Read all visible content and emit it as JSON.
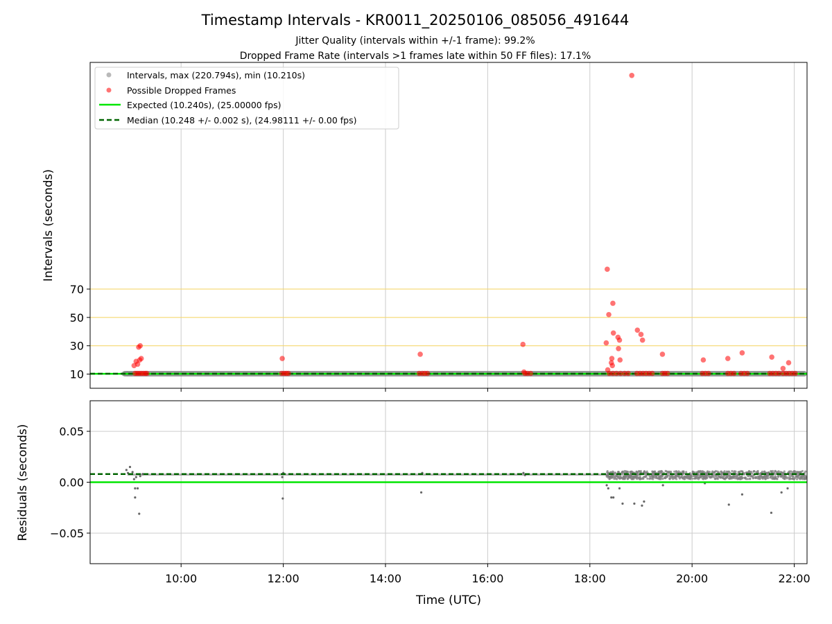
{
  "figure": {
    "title": "Timestamp Intervals - KR0011_20250106_085056_491644",
    "subtitle_1": "Jitter Quality (intervals within +/-1 frame): 99.2%",
    "subtitle_2": "Dropped Frame Rate (intervals >1 frames late within 50 FF files): 17.1%"
  },
  "colors": {
    "intervals": "#808080",
    "dropped": "#ff0000",
    "expected": "#00e600",
    "median": "#006400",
    "hlines": "#f5d76e",
    "grid": "#cccccc"
  },
  "chart_data": [
    {
      "type": "scatter",
      "xlabel": "",
      "ylabel": "Intervals (seconds)",
      "xlim": [
        8.22,
        22.25
      ],
      "ylim": [
        0,
        230
      ],
      "y_ticks": [
        10,
        30,
        50,
        70
      ],
      "y_tick_labels": [
        "10",
        "30",
        "50",
        "70"
      ],
      "x_ticks": [
        10,
        12,
        14,
        16,
        18,
        20,
        22
      ],
      "x_tick_labels": [
        "",
        "",
        "",
        "",
        "",
        "",
        ""
      ],
      "grid": true,
      "legend_position": "top-left",
      "legend": [
        "Intervals, max (220.794s), min (10.210s)",
        "Possible Dropped Frames",
        "Expected (10.240s), (25.00000 fps)",
        "Median (10.248 +/- 0.002 s), (24.98111 +/- 0.00 fps)"
      ],
      "hlines": [
        {
          "y": 30,
          "style": "threshold"
        },
        {
          "y": 50,
          "style": "threshold"
        },
        {
          "y": 70,
          "style": "threshold"
        },
        {
          "y": 10.24,
          "series": "Expected"
        },
        {
          "y": 10.248,
          "series": "Median"
        }
      ],
      "series": [
        {
          "name": "Intervals, max (220.794s), min (10.210s)",
          "kind": "band",
          "x_range": [
            8.85,
            22.25
          ],
          "y": 10.25
        },
        {
          "name": "Possible Dropped Frames",
          "kind": "points",
          "points": [
            [
              9.08,
              16
            ],
            [
              9.12,
              19
            ],
            [
              9.15,
              17
            ],
            [
              9.17,
              29
            ],
            [
              9.2,
              30
            ],
            [
              9.22,
              21
            ],
            [
              9.19,
              20
            ],
            [
              9.1,
              10.5
            ],
            [
              9.14,
              10.5
            ],
            [
              9.18,
              10.5
            ],
            [
              9.22,
              10.5
            ],
            [
              9.26,
              10.5
            ],
            [
              9.3,
              10.5
            ],
            [
              9.33,
              10.5
            ],
            [
              11.98,
              21
            ],
            [
              11.97,
              10.5
            ],
            [
              12.02,
              10.5
            ],
            [
              12.06,
              10.5
            ],
            [
              12.1,
              10.5
            ],
            [
              14.68,
              24
            ],
            [
              14.66,
              10.5
            ],
            [
              14.72,
              10.5
            ],
            [
              14.77,
              10.5
            ],
            [
              14.82,
              10.5
            ],
            [
              16.69,
              31
            ],
            [
              16.71,
              11.5
            ],
            [
              16.73,
              10.5
            ],
            [
              16.78,
              10.5
            ],
            [
              16.84,
              10.5
            ],
            [
              18.34,
              84
            ],
            [
              18.32,
              32
            ],
            [
              18.37,
              52
            ],
            [
              18.45,
              60
            ],
            [
              18.46,
              39
            ],
            [
              18.55,
              36
            ],
            [
              18.58,
              34
            ],
            [
              18.56,
              28
            ],
            [
              18.59,
              20
            ],
            [
              18.43,
              21
            ],
            [
              18.42,
              18
            ],
            [
              18.44,
              16
            ],
            [
              18.35,
              13
            ],
            [
              18.82,
              220.8
            ],
            [
              18.93,
              41
            ],
            [
              19.0,
              38
            ],
            [
              19.03,
              34
            ],
            [
              19.42,
              24
            ],
            [
              20.22,
              20
            ],
            [
              20.7,
              21
            ],
            [
              20.98,
              25
            ],
            [
              21.56,
              22
            ],
            [
              21.78,
              14
            ],
            [
              21.89,
              18
            ],
            [
              18.38,
              10.5
            ],
            [
              18.45,
              10.5
            ],
            [
              18.52,
              10.5
            ],
            [
              18.6,
              10.5
            ],
            [
              18.68,
              10.5
            ],
            [
              18.75,
              10.5
            ],
            [
              18.92,
              10.5
            ],
            [
              18.98,
              10.5
            ],
            [
              19.04,
              10.5
            ],
            [
              19.1,
              10.5
            ],
            [
              19.16,
              10.5
            ],
            [
              19.22,
              10.5
            ],
            [
              19.42,
              10.5
            ],
            [
              19.47,
              10.5
            ],
            [
              19.52,
              10.5
            ],
            [
              20.2,
              10.5
            ],
            [
              20.26,
              10.5
            ],
            [
              20.32,
              10.5
            ],
            [
              20.7,
              10.5
            ],
            [
              20.76,
              10.5
            ],
            [
              20.82,
              10.5
            ],
            [
              20.96,
              10.5
            ],
            [
              21.02,
              10.5
            ],
            [
              21.08,
              10.5
            ],
            [
              21.52,
              10.5
            ],
            [
              21.58,
              10.5
            ],
            [
              21.64,
              10.5
            ],
            [
              21.7,
              10.5
            ],
            [
              21.78,
              10.5
            ],
            [
              21.84,
              10.5
            ],
            [
              21.9,
              10.5
            ],
            [
              21.96,
              10.5
            ],
            [
              22.02,
              10.5
            ]
          ]
        }
      ]
    },
    {
      "type": "scatter",
      "xlabel": "Time (UTC)",
      "ylabel": "Residuals (seconds)",
      "xlim": [
        8.22,
        22.25
      ],
      "ylim": [
        -0.08,
        0.08
      ],
      "y_ticks": [
        -0.05,
        0.0,
        0.05
      ],
      "y_tick_labels": [
        "−0.05",
        "0.00",
        "0.05"
      ],
      "x_ticks": [
        10,
        12,
        14,
        16,
        18,
        20,
        22
      ],
      "x_tick_labels": [
        "10:00",
        "12:00",
        "14:00",
        "16:00",
        "18:00",
        "20:00",
        "22:00"
      ],
      "grid": true,
      "hlines": [
        {
          "y": 0.0,
          "series": "Expected"
        },
        {
          "y": 0.008,
          "series": "Median"
        }
      ],
      "series": [
        {
          "name": "Residuals",
          "points": [
            [
              8.93,
              0.012
            ],
            [
              8.96,
              0.009
            ],
            [
              9.0,
              0.015
            ],
            [
              9.05,
              0.01
            ],
            [
              9.08,
              0.003
            ],
            [
              9.1,
              -0.006
            ],
            [
              9.12,
              0.005
            ],
            [
              9.15,
              -0.006
            ],
            [
              9.1,
              -0.015
            ],
            [
              9.18,
              -0.031
            ],
            [
              9.2,
              0.006
            ],
            [
              9.25,
              0.008
            ],
            [
              11.98,
              0.005
            ],
            [
              11.99,
              -0.016
            ],
            [
              12.0,
              0.009
            ],
            [
              14.7,
              -0.01
            ],
            [
              14.72,
              0.009
            ],
            [
              16.7,
              0.009
            ],
            [
              16.73,
              0.007
            ],
            [
              18.33,
              -0.003
            ],
            [
              18.36,
              -0.006
            ],
            [
              18.42,
              -0.015
            ],
            [
              18.46,
              -0.015
            ],
            [
              18.58,
              -0.006
            ],
            [
              18.64,
              -0.021
            ],
            [
              18.87,
              -0.021
            ],
            [
              19.02,
              -0.023
            ],
            [
              19.06,
              -0.019
            ],
            [
              19.43,
              -0.003
            ],
            [
              20.25,
              -0.001
            ],
            [
              20.72,
              -0.022
            ],
            [
              20.98,
              -0.012
            ],
            [
              21.55,
              -0.03
            ],
            [
              21.75,
              -0.01
            ],
            [
              21.87,
              -0.006
            ]
          ],
          "dense_band": {
            "x_range": [
              18.33,
              22.25
            ],
            "y_range": [
              0.003,
              0.011
            ]
          }
        }
      ]
    }
  ]
}
